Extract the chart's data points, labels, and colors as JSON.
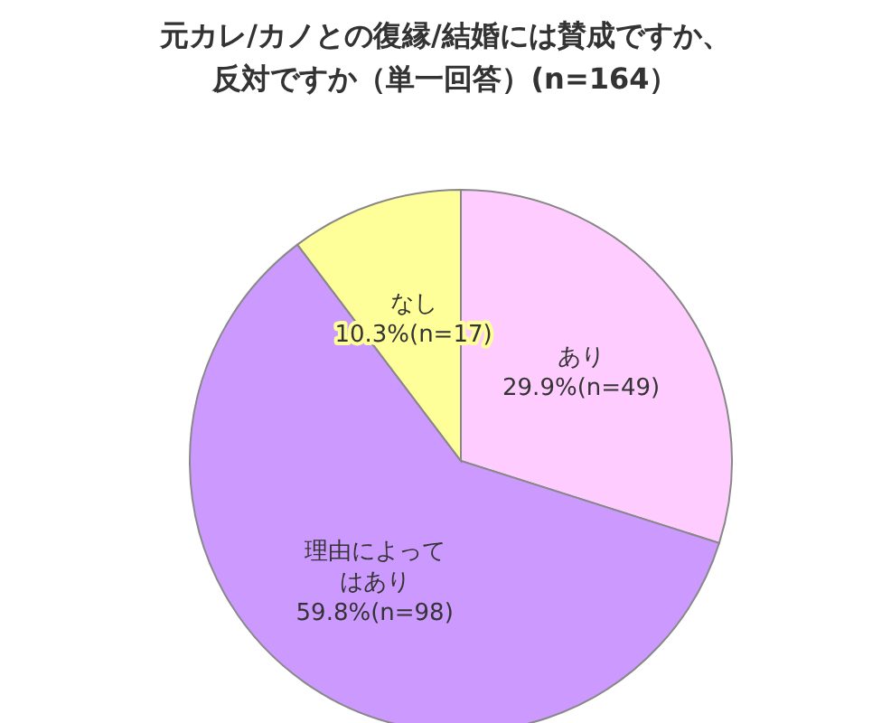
{
  "chart_data": {
    "type": "pie",
    "title": "元カレ/カノとの復縁/結婚には賛成ですか、反対ですか（単一回答）(n=164）",
    "categories": [
      "あり",
      "理由によってはあり",
      "なし"
    ],
    "values": [
      29.9,
      59.8,
      10.3
    ],
    "value_labels": [
      "29.9%(n=49)",
      "59.8%(n=98)",
      "10.3%(n=17)"
    ],
    "colors": [
      "#ffccff",
      "#cc99ff",
      "#ffff99"
    ]
  }
}
